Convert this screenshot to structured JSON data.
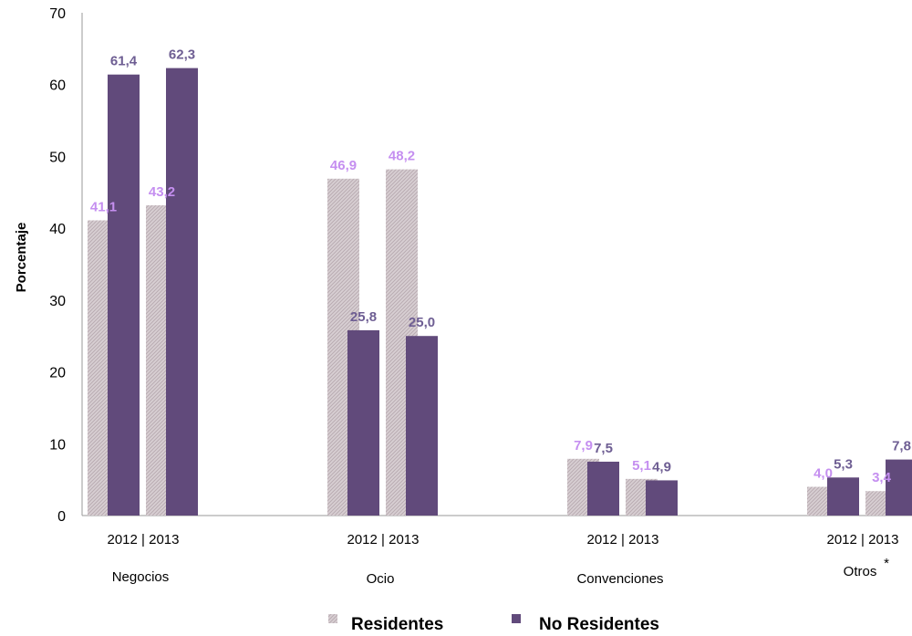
{
  "chart_data": {
    "type": "bar",
    "ylabel": "Porcentaje",
    "ylim": [
      0,
      70
    ],
    "yticks": [
      0,
      10,
      20,
      30,
      40,
      50,
      60,
      70
    ],
    "grid": false,
    "legend_position": "bottom",
    "categories": [
      "Negocios",
      "Ocio",
      "Convenciones",
      "Otros"
    ],
    "category_notes": [
      "",
      "",
      "",
      "*"
    ],
    "years": [
      "2012",
      "2013"
    ],
    "year_separator": "|",
    "series": [
      {
        "name": "Residentes",
        "color": "#cdc2c6",
        "label_color": "#c58ff0",
        "values": [
          [
            41.1,
            43.2
          ],
          [
            46.9,
            48.2
          ],
          [
            7.9,
            5.1
          ],
          [
            4.0,
            3.4
          ]
        ],
        "labels": [
          [
            "41,1",
            "43,2"
          ],
          [
            "46,9",
            "48,2"
          ],
          [
            "7,9",
            "5,1"
          ],
          [
            "4,0",
            "3,4"
          ]
        ]
      },
      {
        "name": "No Residentes",
        "color": "#614a7b",
        "label_color": "#6e5e93",
        "values": [
          [
            61.4,
            62.3
          ],
          [
            25.8,
            25.0
          ],
          [
            7.5,
            4.9
          ],
          [
            5.3,
            7.8
          ]
        ],
        "labels": [
          [
            "61,4",
            "62,3"
          ],
          [
            "25,8",
            "25,0"
          ],
          [
            "7,5",
            "4,9"
          ],
          [
            "5,3",
            "7,8"
          ]
        ]
      }
    ]
  }
}
